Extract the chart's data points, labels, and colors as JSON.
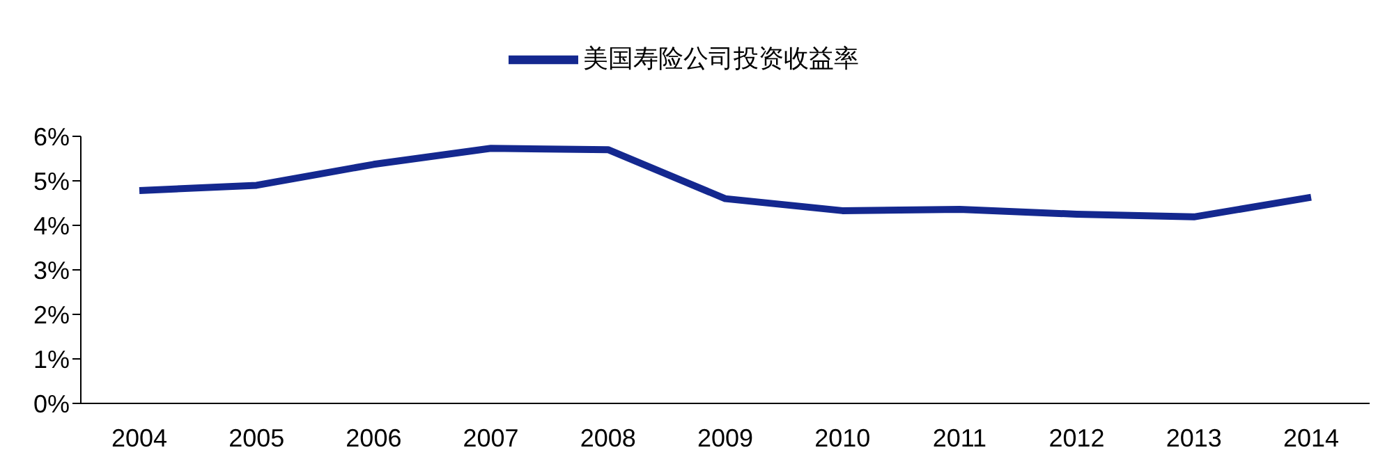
{
  "chart_data": {
    "type": "line",
    "categories": [
      "2004",
      "2005",
      "2006",
      "2007",
      "2008",
      "2009",
      "2010",
      "2011",
      "2012",
      "2013",
      "2014"
    ],
    "series": [
      {
        "name": "美国寿险公司投资收益率",
        "color": "#14288f",
        "values": [
          4.78,
          4.9,
          5.37,
          5.73,
          5.7,
          4.6,
          4.33,
          4.36,
          4.25,
          4.19,
          4.63
        ]
      }
    ],
    "ylim": [
      0,
      6
    ],
    "yticks": [
      {
        "value": 0,
        "label": "0%"
      },
      {
        "value": 1,
        "label": "1%"
      },
      {
        "value": 2,
        "label": "2%"
      },
      {
        "value": 3,
        "label": "3%"
      },
      {
        "value": 4,
        "label": "4%"
      },
      {
        "value": 5,
        "label": "5%"
      },
      {
        "value": 6,
        "label": "6%"
      }
    ],
    "legend": "top",
    "grid": false,
    "marker": "none",
    "line_style": "solid"
  }
}
